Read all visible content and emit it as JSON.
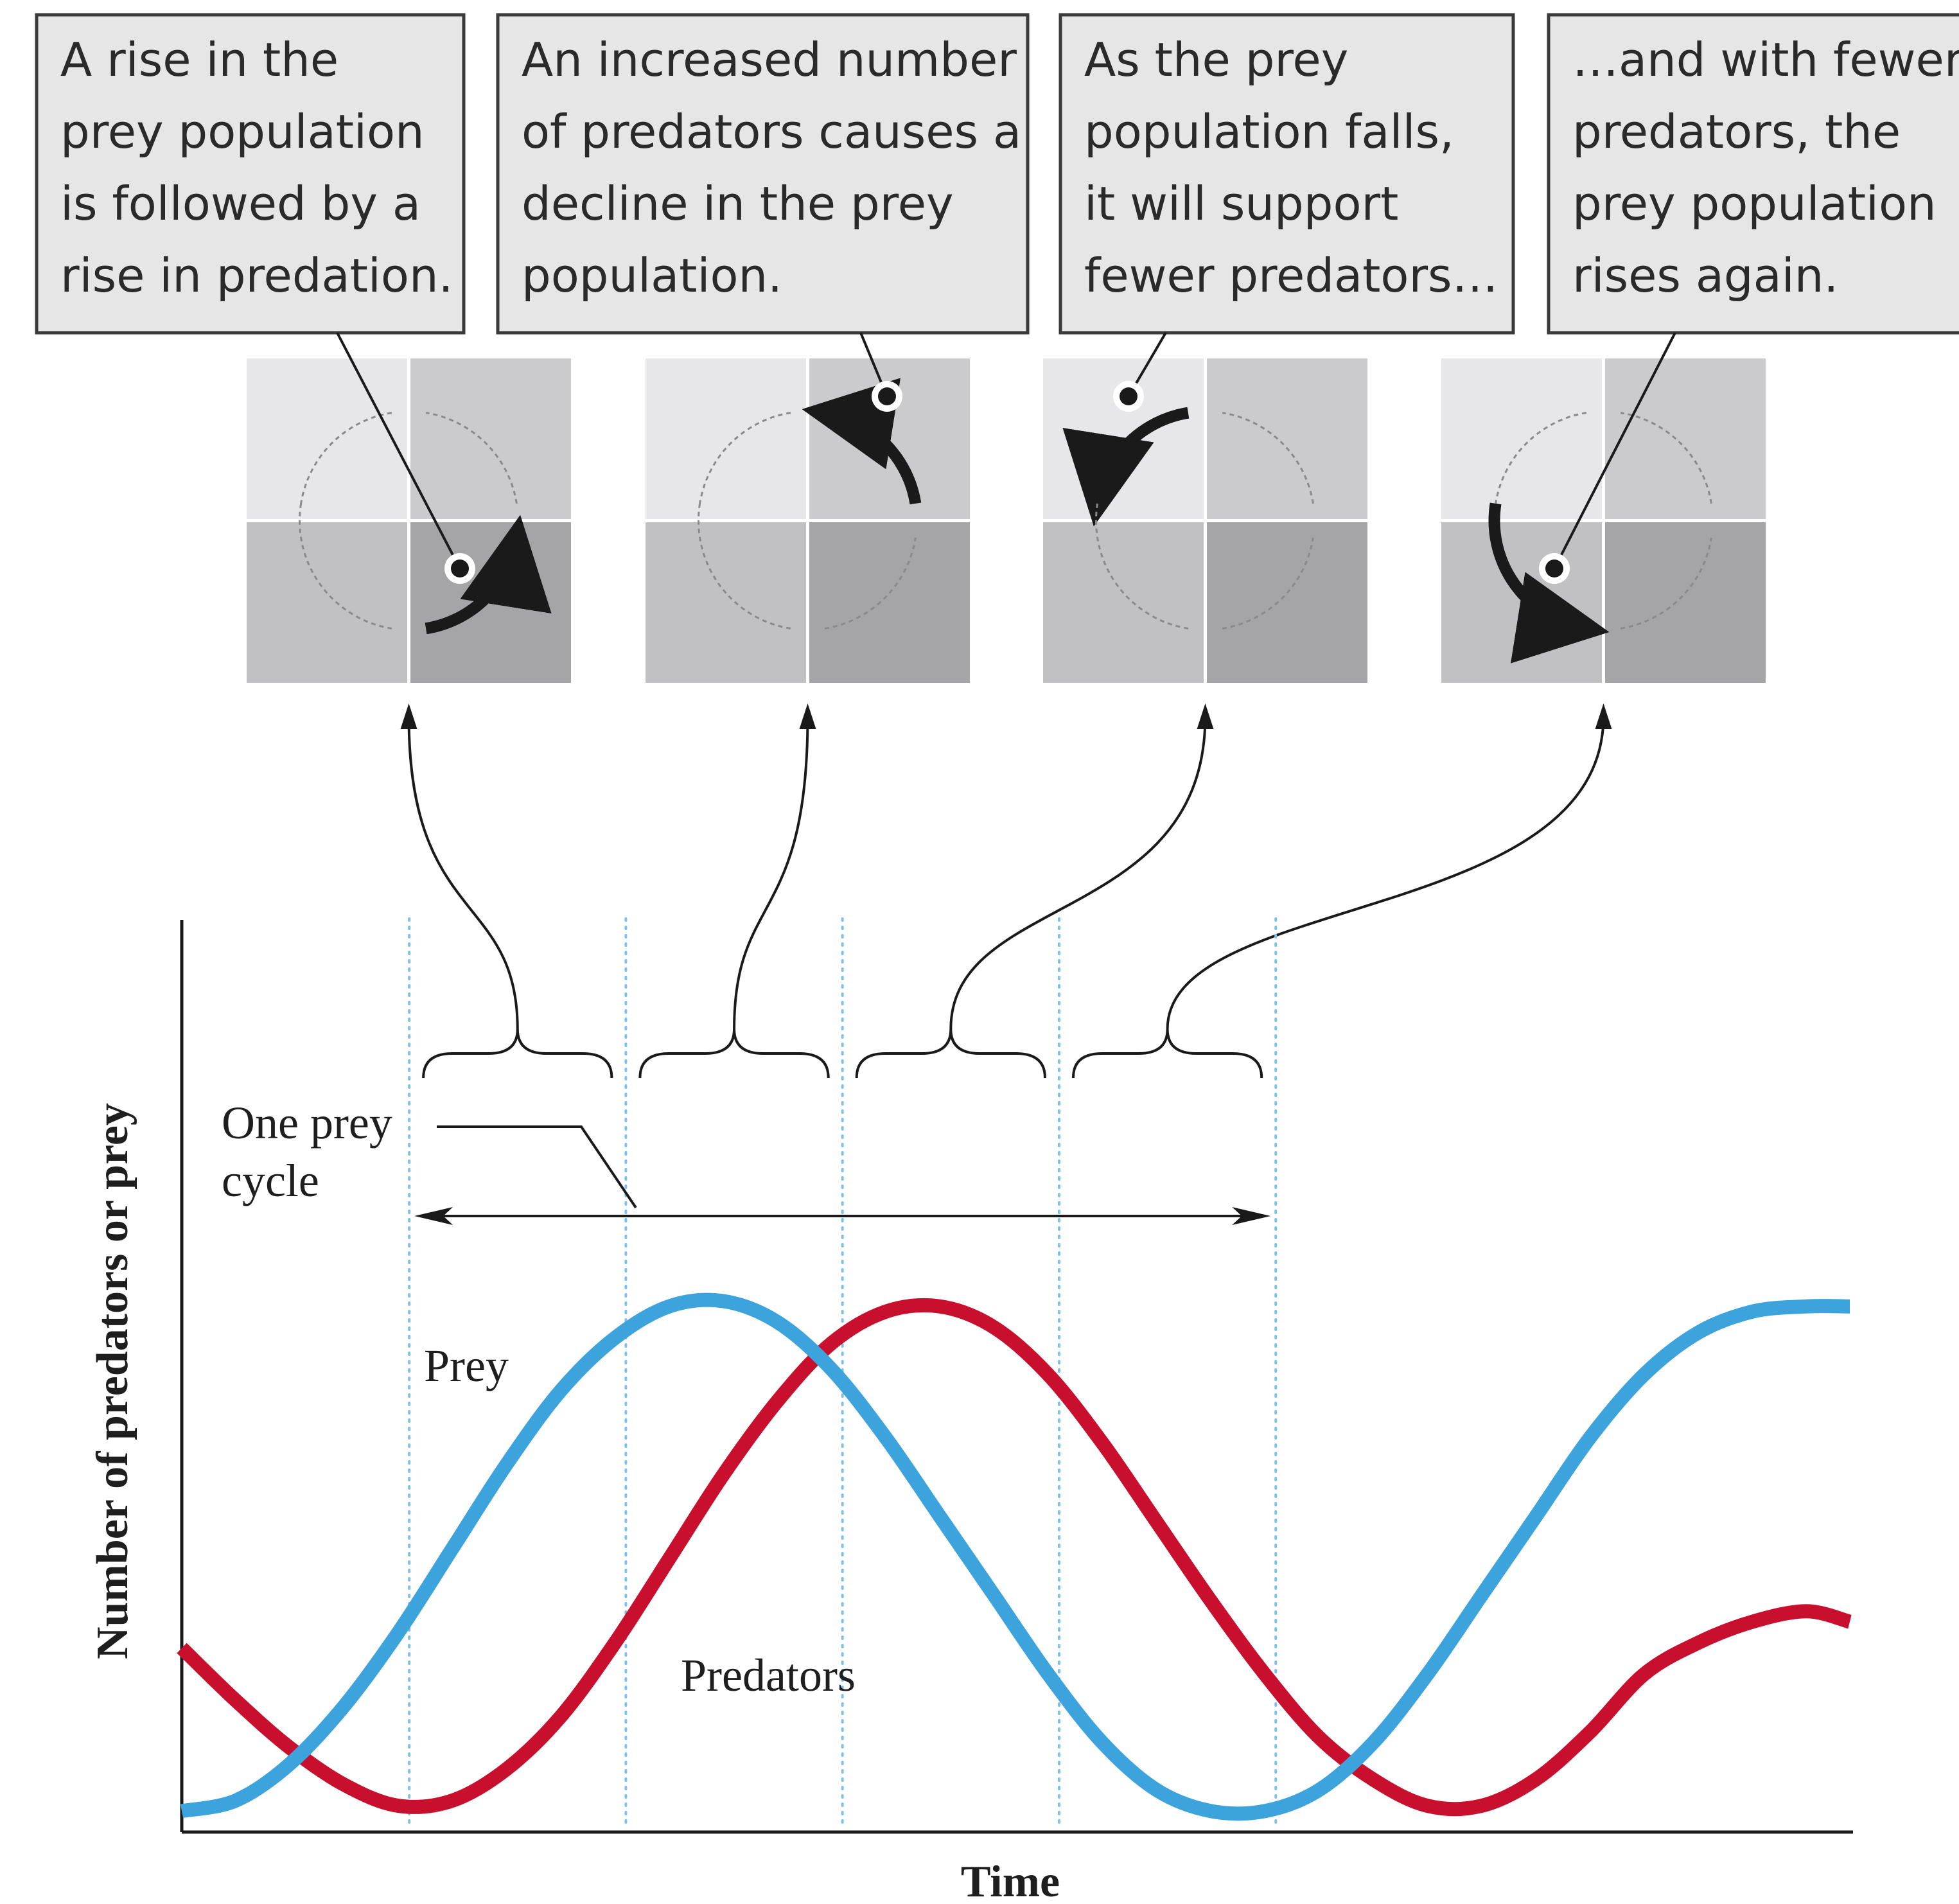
{
  "colors": {
    "prey": "#3ca3dc",
    "predators": "#c8102e",
    "callout_fill": "#e6e6e6",
    "callout_stroke": "#3a3a3a",
    "q1": "#e7e7e9",
    "q2": "#cbcbcd",
    "q3": "#c1c1c3",
    "q4": "#a5a5a7",
    "guide": "#7fc1e6",
    "axis": "#1a1a1a"
  },
  "callouts": [
    {
      "lines": [
        "A rise in the",
        "prey population",
        "is followed by a",
        "rise in predation."
      ],
      "active_quadrant": "bottom-right"
    },
    {
      "lines": [
        "An increased number",
        "of predators causes a",
        "decline in the prey",
        "population."
      ],
      "active_quadrant": "top-right"
    },
    {
      "lines": [
        "As the prey",
        "population falls,",
        "it will support",
        "fewer predators…"
      ],
      "active_quadrant": "top-left"
    },
    {
      "lines": [
        "…and with fewer",
        "predators, the",
        "prey population",
        "rises again."
      ],
      "active_quadrant": "bottom-left"
    }
  ],
  "cycle_label": {
    "lines": [
      "One prey",
      "cycle"
    ]
  },
  "chart_data": {
    "type": "line",
    "xlabel": "Time",
    "ylabel": "Number of predators or prey",
    "x_ticks_shown": false,
    "y_ticks_shown": false,
    "xlim": [
      0,
      1.54
    ],
    "ylim": [
      0,
      1.09
    ],
    "guide_lines_x": [
      0.21,
      0.41,
      0.61,
      0.81,
      1.01
    ],
    "series": [
      {
        "name": "Prey",
        "x": [
          0,
          0.05,
          0.1,
          0.15,
          0.2,
          0.25,
          0.3,
          0.35,
          0.4,
          0.45,
          0.5,
          0.55,
          0.6,
          0.65,
          0.7,
          0.75,
          0.8,
          0.85,
          0.9,
          0.95,
          1.0,
          1.05,
          1.1,
          1.15,
          1.2,
          1.25,
          1.3,
          1.35,
          1.4,
          1.45,
          1.5,
          1.54
        ],
        "values": [
          0.04,
          0.06,
          0.13,
          0.24,
          0.38,
          0.54,
          0.7,
          0.84,
          0.94,
          1.0,
          1.01,
          0.97,
          0.88,
          0.75,
          0.6,
          0.45,
          0.3,
          0.17,
          0.08,
          0.04,
          0.04,
          0.08,
          0.17,
          0.3,
          0.45,
          0.6,
          0.75,
          0.87,
          0.95,
          0.99,
          1.0,
          1.0
        ]
      },
      {
        "name": "Predators",
        "x": [
          0,
          0.05,
          0.1,
          0.15,
          0.2,
          0.25,
          0.3,
          0.35,
          0.4,
          0.45,
          0.5,
          0.55,
          0.6,
          0.65,
          0.7,
          0.75,
          0.8,
          0.85,
          0.9,
          0.95,
          1.0,
          1.05,
          1.1,
          1.15,
          1.2,
          1.25,
          1.3,
          1.35,
          1.4,
          1.45,
          1.5,
          1.54
        ],
        "values": [
          0.35,
          0.25,
          0.16,
          0.09,
          0.05,
          0.06,
          0.12,
          0.22,
          0.36,
          0.52,
          0.68,
          0.82,
          0.93,
          0.99,
          1.0,
          0.96,
          0.87,
          0.74,
          0.59,
          0.44,
          0.3,
          0.18,
          0.1,
          0.05,
          0.05,
          0.1,
          0.19,
          0.3,
          0.36,
          0.4,
          0.42,
          0.4
        ]
      }
    ],
    "annotations": [
      {
        "text": "Prey",
        "series": "Prey"
      },
      {
        "text": "Predators",
        "series": "Predators"
      }
    ]
  }
}
